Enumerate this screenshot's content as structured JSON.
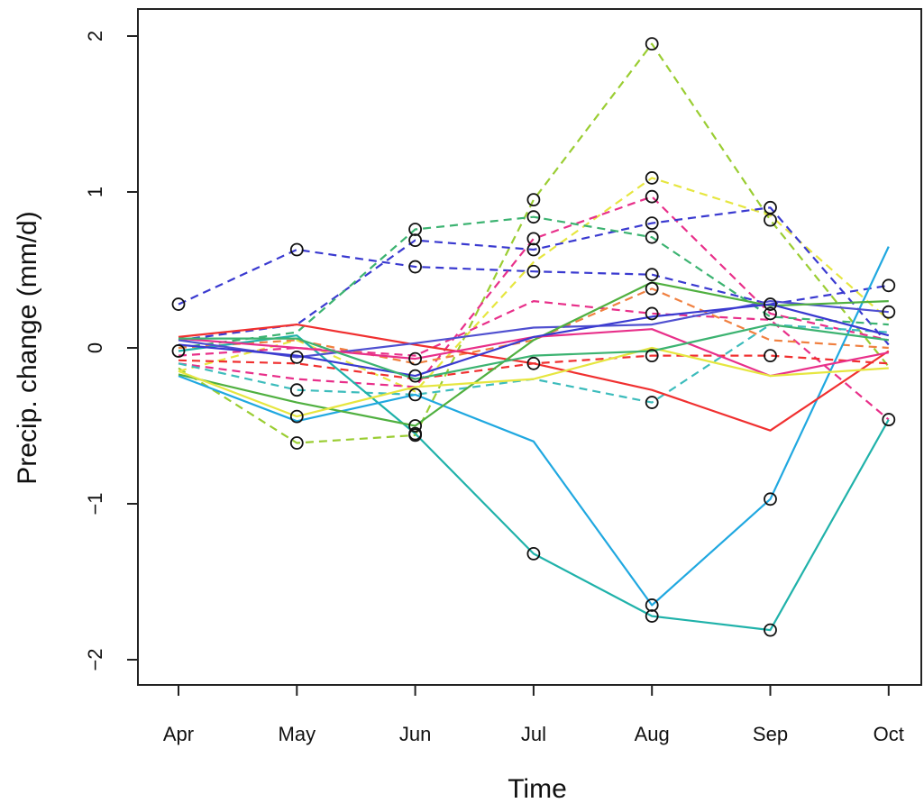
{
  "chart_data": {
    "type": "line",
    "xlabel": "Time",
    "ylabel": "Precip. change (mm/d)",
    "categories": [
      "Apr",
      "May",
      "Jun",
      "Jul",
      "Aug",
      "Sep",
      "Oct"
    ],
    "yticks": [
      -2,
      -1,
      0,
      1,
      2
    ],
    "yticklabels": [
      "−2",
      "−1",
      "0",
      "1",
      "2"
    ],
    "ylim": [
      -2.2,
      2.15
    ],
    "grid": false,
    "legend": "none",
    "markers": "open circles on selected points",
    "series": [
      {
        "color": "#3a3ad0",
        "dash": "dashed",
        "values": [
          0.28,
          0.63,
          0.52,
          0.49,
          0.47,
          0.28,
          0.4
        ],
        "markers": [
          true,
          true,
          true,
          true,
          true,
          true,
          true
        ]
      },
      {
        "color": "#9acd32",
        "dash": "dashed",
        "values": [
          -0.13,
          -0.61,
          -0.56,
          0.95,
          1.95,
          0.82,
          -0.12
        ],
        "markers": [
          false,
          true,
          true,
          true,
          true,
          true,
          false
        ]
      },
      {
        "color": "#e6e640",
        "dash": "dashed",
        "values": [
          -0.15,
          0.05,
          -0.28,
          0.55,
          1.09,
          0.85,
          0.18
        ],
        "markers": [
          false,
          false,
          false,
          false,
          true,
          false,
          false
        ]
      },
      {
        "color": "#e8308a",
        "dash": "dashed",
        "values": [
          -0.1,
          -0.2,
          -0.25,
          0.7,
          0.97,
          0.22,
          0.05
        ],
        "markers": [
          false,
          false,
          false,
          true,
          true,
          true,
          false
        ]
      },
      {
        "color": "#3a3ad0",
        "dash": "dashed",
        "values": [
          0.05,
          0.15,
          0.69,
          0.63,
          0.8,
          0.9,
          0.02
        ],
        "markers": [
          false,
          false,
          true,
          true,
          true,
          true,
          false
        ]
      },
      {
        "color": "#3cb371",
        "dash": "dashed",
        "values": [
          0.0,
          0.1,
          0.76,
          0.84,
          0.71,
          0.2,
          0.15
        ],
        "markers": [
          false,
          false,
          true,
          true,
          true,
          false,
          false
        ]
      },
      {
        "color": "#e8308a",
        "dash": "dashed",
        "values": [
          -0.05,
          0.0,
          -0.05,
          0.3,
          0.22,
          0.18,
          -0.46
        ],
        "markers": [
          false,
          false,
          false,
          false,
          true,
          false,
          true
        ]
      },
      {
        "color": "#3cbcbc",
        "dash": "dashed",
        "values": [
          -0.1,
          -0.27,
          -0.3,
          -0.2,
          -0.35,
          0.15,
          0.1
        ],
        "markers": [
          false,
          true,
          false,
          false,
          true,
          false,
          false
        ]
      },
      {
        "color": "#f08040",
        "dash": "dashed",
        "values": [
          0.0,
          0.05,
          -0.1,
          0.05,
          0.38,
          0.05,
          0.0
        ],
        "markers": [
          false,
          false,
          false,
          false,
          true,
          false,
          false
        ]
      },
      {
        "color": "#f03030",
        "dash": "dashed",
        "values": [
          -0.08,
          -0.1,
          -0.2,
          -0.1,
          -0.05,
          -0.05,
          -0.1
        ],
        "markers": [
          false,
          false,
          false,
          true,
          true,
          true,
          false
        ]
      },
      {
        "color": "#20b2aa",
        "dash": "solid",
        "values": [
          -0.02,
          0.08,
          -0.55,
          -1.32,
          -1.72,
          -1.81,
          -0.46
        ],
        "markers": [
          true,
          false,
          true,
          true,
          true,
          true,
          false
        ]
      },
      {
        "color": "#20a8e0",
        "dash": "solid",
        "values": [
          -0.18,
          -0.47,
          -0.3,
          -0.6,
          -1.65,
          -0.97,
          0.65
        ],
        "markers": [
          false,
          false,
          true,
          false,
          true,
          true,
          false
        ]
      },
      {
        "color": "#f03030",
        "dash": "solid",
        "values": [
          0.07,
          0.15,
          0.02,
          -0.1,
          -0.27,
          -0.53,
          -0.02
        ],
        "markers": [
          false,
          false,
          false,
          false,
          false,
          false,
          false
        ]
      },
      {
        "color": "#5050d0",
        "dash": "solid",
        "values": [
          0.05,
          -0.06,
          0.03,
          0.13,
          0.15,
          0.3,
          0.23
        ],
        "markers": [
          false,
          true,
          false,
          false,
          false,
          false,
          true
        ]
      },
      {
        "color": "#50b040",
        "dash": "solid",
        "values": [
          -0.17,
          -0.35,
          -0.5,
          0.05,
          0.42,
          0.27,
          0.3
        ],
        "markers": [
          false,
          false,
          true,
          false,
          false,
          false,
          false
        ]
      },
      {
        "color": "#e8308a",
        "dash": "solid",
        "values": [
          0.06,
          0.0,
          -0.07,
          0.07,
          0.12,
          -0.18,
          -0.03
        ],
        "markers": [
          false,
          false,
          true,
          false,
          false,
          false,
          false
        ]
      },
      {
        "color": "#e6e640",
        "dash": "solid",
        "values": [
          -0.15,
          -0.44,
          -0.25,
          -0.2,
          0.0,
          -0.18,
          -0.13
        ],
        "markers": [
          false,
          true,
          false,
          false,
          false,
          false,
          false
        ]
      },
      {
        "color": "#3a3ad0",
        "dash": "solid",
        "values": [
          0.02,
          -0.05,
          -0.18,
          0.07,
          0.2,
          0.28,
          0.08
        ],
        "markers": [
          false,
          false,
          true,
          false,
          false,
          false,
          false
        ]
      },
      {
        "color": "#3cb371",
        "dash": "solid",
        "values": [
          0.06,
          0.06,
          -0.2,
          -0.05,
          -0.02,
          0.15,
          0.05
        ],
        "markers": [
          false,
          false,
          false,
          false,
          false,
          false,
          false
        ]
      }
    ]
  }
}
